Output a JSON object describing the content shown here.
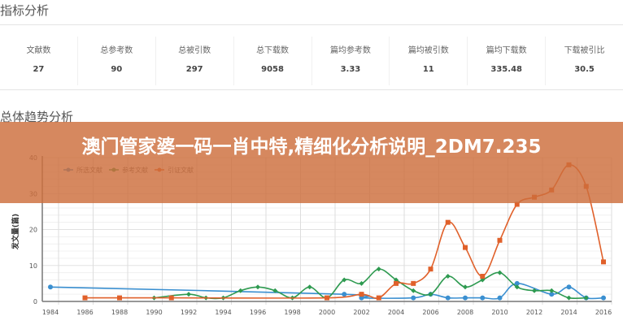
{
  "header": {
    "title": "指标分析"
  },
  "stats": [
    {
      "label": "文献数",
      "value": "27"
    },
    {
      "label": "总参考数",
      "value": "90"
    },
    {
      "label": "总被引数",
      "value": "297"
    },
    {
      "label": "总下载数",
      "value": "9058"
    },
    {
      "label": "篇均参考数",
      "value": "3.33"
    },
    {
      "label": "篇均被引数",
      "value": "11"
    },
    {
      "label": "篇均下载数",
      "value": "335.48"
    },
    {
      "label": "下载被引比",
      "value": "30.5"
    }
  ],
  "section2": {
    "title": "总体趋势分析"
  },
  "banner": {
    "text": "澳门管家婆一码一肖中特,精细化分析说明_2DM7.235"
  },
  "chart_data": {
    "type": "line",
    "ylabel": "发文量(篇)",
    "ylim": [
      0,
      40
    ],
    "yticks": [
      0,
      10,
      20,
      30,
      40
    ],
    "xticks": [
      1984,
      1986,
      1988,
      1990,
      1992,
      1994,
      1996,
      1998,
      2000,
      2002,
      2004,
      2006,
      2008,
      2010,
      2012,
      2014,
      2016
    ],
    "legend": "top-left",
    "grid": true,
    "series": [
      {
        "name": "所选文献",
        "color": "#3a8fd0",
        "marker": "circle",
        "points": [
          [
            1984,
            4
          ],
          [
            2001,
            2
          ],
          [
            2002,
            1
          ],
          [
            2005,
            1
          ],
          [
            2006,
            2
          ],
          [
            2007,
            1
          ],
          [
            2008,
            1
          ],
          [
            2009,
            1
          ],
          [
            2010,
            1
          ],
          [
            2011,
            5
          ],
          [
            2013,
            2
          ],
          [
            2014,
            4
          ],
          [
            2015,
            1
          ],
          [
            2016,
            1
          ]
        ]
      },
      {
        "name": "参考文献",
        "color": "#2e9a50",
        "marker": "diamond",
        "points": [
          [
            1990,
            1
          ],
          [
            1992,
            2
          ],
          [
            1993,
            1
          ],
          [
            1994,
            1
          ],
          [
            1995,
            3
          ],
          [
            1996,
            4
          ],
          [
            1997,
            3
          ],
          [
            1998,
            1
          ],
          [
            1999,
            4
          ],
          [
            2000,
            1
          ],
          [
            2001,
            6
          ],
          [
            2002,
            5
          ],
          [
            2003,
            9
          ],
          [
            2004,
            6
          ],
          [
            2005,
            3
          ],
          [
            2006,
            2
          ],
          [
            2007,
            7
          ],
          [
            2008,
            4
          ],
          [
            2009,
            6
          ],
          [
            2010,
            8
          ],
          [
            2011,
            4
          ],
          [
            2012,
            3
          ],
          [
            2013,
            3
          ],
          [
            2014,
            1
          ],
          [
            2015,
            1
          ]
        ]
      },
      {
        "name": "引证文献",
        "color": "#e0602a",
        "marker": "square",
        "points": [
          [
            1986,
            1
          ],
          [
            1988,
            1
          ],
          [
            1991,
            1
          ],
          [
            2000,
            1
          ],
          [
            2002,
            2
          ],
          [
            2003,
            1
          ],
          [
            2004,
            5
          ],
          [
            2005,
            5
          ],
          [
            2006,
            9
          ],
          [
            2007,
            22
          ],
          [
            2008,
            15
          ],
          [
            2009,
            7
          ],
          [
            2010,
            17
          ],
          [
            2011,
            27
          ],
          [
            2012,
            29
          ],
          [
            2013,
            31
          ],
          [
            2014,
            38
          ],
          [
            2015,
            32
          ],
          [
            2016,
            11
          ]
        ]
      }
    ]
  }
}
